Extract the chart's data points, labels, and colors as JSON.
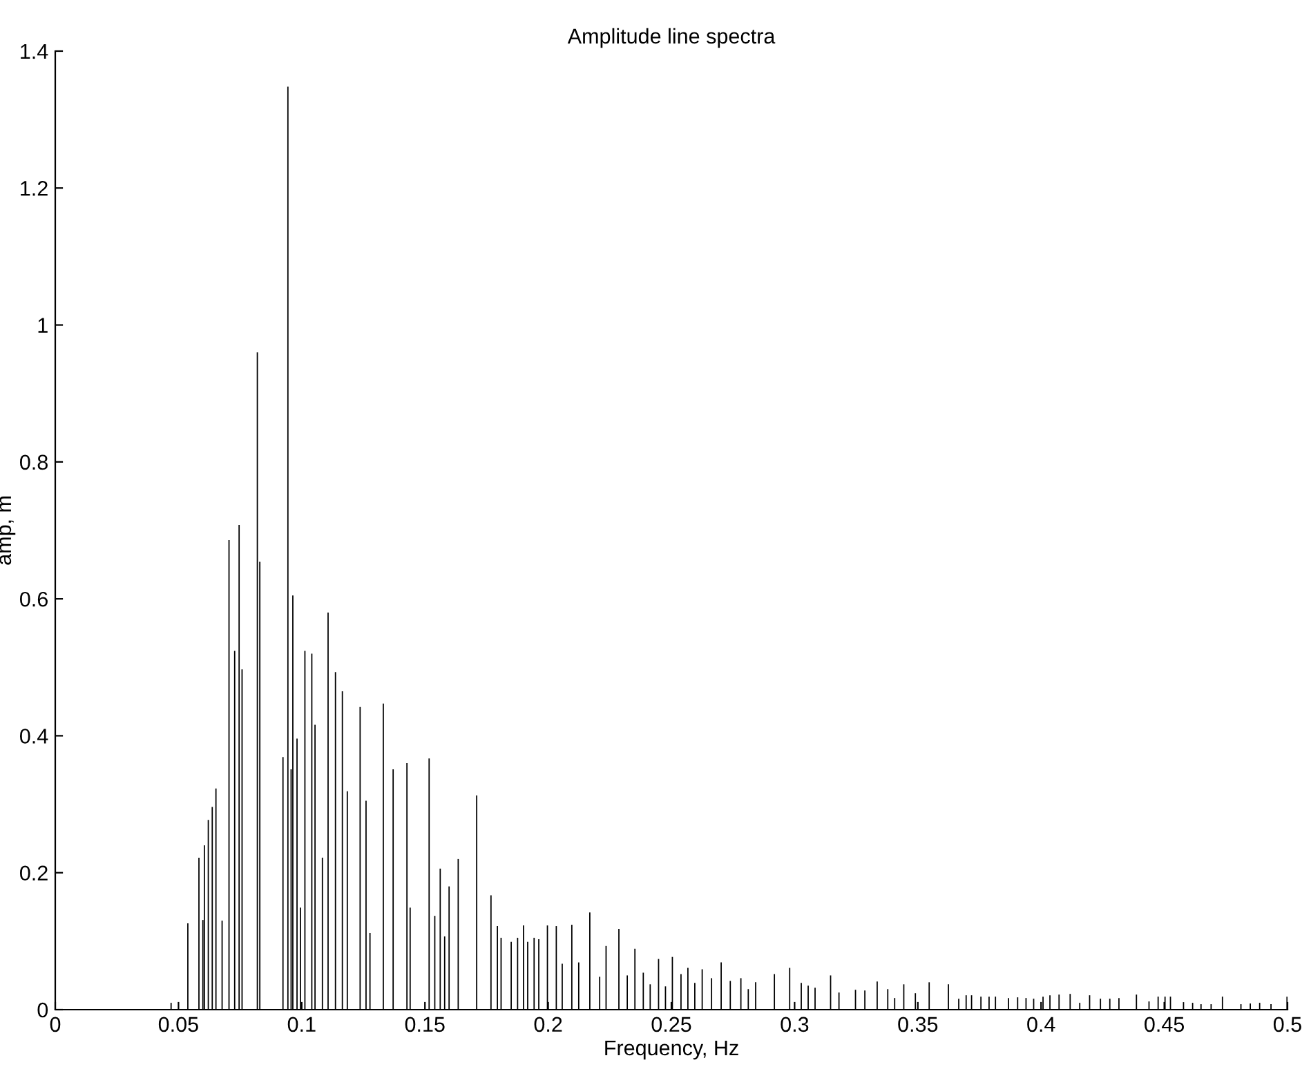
{
  "chart_data": {
    "type": "bar",
    "title": "Amplitude line spectra",
    "xlabel": "Frequency, Hz",
    "ylabel": "amp, m",
    "color": "#000000",
    "x": [
      0.047,
      0.0538,
      0.0583,
      0.0599,
      0.0605,
      0.0621,
      0.0637,
      0.0652,
      0.0677,
      0.0705,
      0.0728,
      0.0746,
      0.0758,
      0.082,
      0.083,
      0.0924,
      0.0944,
      0.0957,
      0.0964,
      0.0981,
      0.0995,
      0.1013,
      0.1041,
      0.1054,
      0.1084,
      0.1107,
      0.1137,
      0.1165,
      0.1185,
      0.1237,
      0.1261,
      0.1277,
      0.1331,
      0.1371,
      0.1427,
      0.144,
      0.1517,
      0.154,
      0.1562,
      0.158,
      0.1598,
      0.1635,
      0.171,
      0.1768,
      0.1794,
      0.1809,
      0.185,
      0.1876,
      0.19,
      0.1917,
      0.1943,
      0.1962,
      0.1997,
      0.2033,
      0.2057,
      0.2096,
      0.2124,
      0.2169,
      0.2209,
      0.2235,
      0.2287,
      0.2321,
      0.2352,
      0.2386,
      0.2414,
      0.2448,
      0.2476,
      0.2504,
      0.2539,
      0.2567,
      0.2595,
      0.2625,
      0.2663,
      0.2702,
      0.2739,
      0.2782,
      0.2812,
      0.2842,
      0.2918,
      0.298,
      0.3027,
      0.3055,
      0.3083,
      0.3146,
      0.318,
      0.3247,
      0.3285,
      0.3335,
      0.3378,
      0.3406,
      0.3443,
      0.349,
      0.3546,
      0.3624,
      0.3666,
      0.3696,
      0.3718,
      0.3756,
      0.3789,
      0.3815,
      0.3868,
      0.3905,
      0.3939,
      0.397,
      0.4008,
      0.4036,
      0.4073,
      0.4118,
      0.4157,
      0.4197,
      0.4241,
      0.4279,
      0.4316,
      0.4387,
      0.4438,
      0.4475,
      0.4503,
      0.4525,
      0.4578,
      0.4615,
      0.4649,
      0.469,
      0.4736,
      0.4811,
      0.4849,
      0.4887,
      0.4933,
      0.4998
    ],
    "values": [
      0.01,
      0.126,
      0.222,
      0.131,
      0.24,
      0.277,
      0.296,
      0.323,
      0.13,
      0.686,
      0.524,
      0.708,
      0.497,
      0.96,
      0.654,
      0.369,
      1.348,
      0.351,
      0.605,
      0.396,
      0.149,
      0.524,
      0.52,
      0.416,
      0.222,
      0.58,
      0.493,
      0.465,
      0.319,
      0.442,
      0.305,
      0.112,
      0.447,
      0.351,
      0.36,
      0.149,
      0.367,
      0.137,
      0.206,
      0.107,
      0.18,
      0.22,
      0.313,
      0.167,
      0.122,
      0.105,
      0.099,
      0.105,
      0.123,
      0.099,
      0.105,
      0.103,
      0.123,
      0.122,
      0.067,
      0.124,
      0.069,
      0.142,
      0.048,
      0.093,
      0.118,
      0.05,
      0.089,
      0.054,
      0.037,
      0.074,
      0.034,
      0.077,
      0.052,
      0.061,
      0.039,
      0.059,
      0.046,
      0.069,
      0.042,
      0.046,
      0.03,
      0.04,
      0.052,
      0.061,
      0.039,
      0.035,
      0.032,
      0.05,
      0.025,
      0.029,
      0.028,
      0.041,
      0.03,
      0.017,
      0.037,
      0.024,
      0.04,
      0.037,
      0.016,
      0.021,
      0.021,
      0.019,
      0.019,
      0.019,
      0.017,
      0.018,
      0.017,
      0.016,
      0.019,
      0.021,
      0.022,
      0.023,
      0.01,
      0.021,
      0.016,
      0.016,
      0.017,
      0.022,
      0.012,
      0.019,
      0.019,
      0.019,
      0.011,
      0.01,
      0.008,
      0.008,
      0.019,
      0.008,
      0.009,
      0.01,
      0.008,
      0.019
    ],
    "xlim": [
      0,
      0.5
    ],
    "xticks": [
      0,
      0.05,
      0.1,
      0.15,
      0.2,
      0.25,
      0.3,
      0.35,
      0.4,
      0.45,
      0.5
    ],
    "ylim": [
      0,
      1.4
    ],
    "yticks": [
      0,
      0.2,
      0.4,
      0.6,
      0.8,
      1,
      1.2,
      1.4
    ],
    "grid": false,
    "legend": false
  }
}
